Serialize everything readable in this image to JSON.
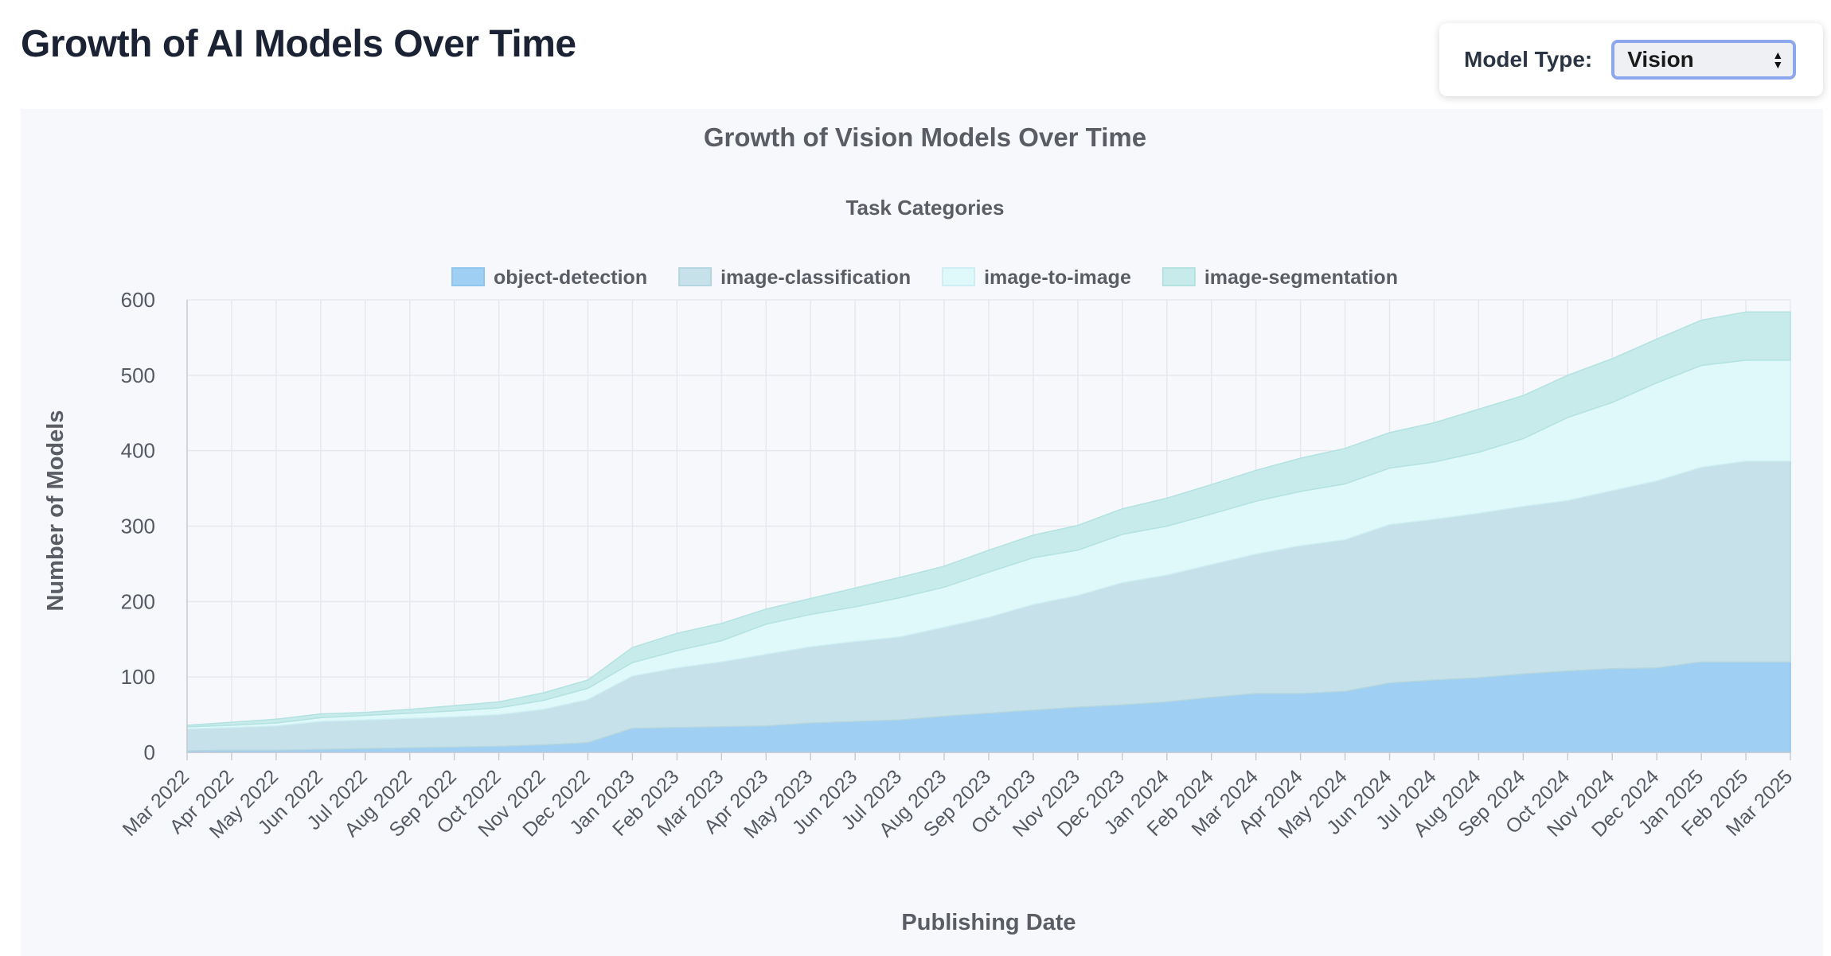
{
  "page": {
    "title": "Growth of AI Models Over Time"
  },
  "controls": {
    "label": "Model Type:",
    "selected": "Vision",
    "arrows_icon": "select-arrows-icon"
  },
  "chart_data": {
    "type": "area",
    "stacked": true,
    "title": "Growth of Vision Models Over Time",
    "legend_title": "Task Categories",
    "legend_placement": "top-center",
    "xlabel": "Publishing Date",
    "ylabel": "Number of Models",
    "ylim": [
      0,
      600
    ],
    "yticks": [
      0,
      100,
      200,
      300,
      400,
      500,
      600
    ],
    "grid": true,
    "categories": [
      "Mar 2022",
      "Apr 2022",
      "May 2022",
      "Jun 2022",
      "Jul 2022",
      "Aug 2022",
      "Sep 2022",
      "Oct 2022",
      "Nov 2022",
      "Dec 2022",
      "Jan 2023",
      "Feb 2023",
      "Mar 2023",
      "Apr 2023",
      "May 2023",
      "Jun 2023",
      "Jul 2023",
      "Aug 2023",
      "Sep 2023",
      "Oct 2023",
      "Nov 2023",
      "Dec 2023",
      "Jan 2024",
      "Feb 2024",
      "Mar 2024",
      "Apr 2024",
      "May 2024",
      "Jun 2024",
      "Jul 2024",
      "Aug 2024",
      "Sep 2024",
      "Oct 2024",
      "Nov 2024",
      "Dec 2024",
      "Jan 2025",
      "Feb 2025",
      "Mar 2025"
    ],
    "series": [
      {
        "name": "object-detection",
        "color": "#9fcff2",
        "stroke": "#8ec6ee",
        "values": [
          2,
          3,
          3,
          4,
          5,
          6,
          7,
          8,
          10,
          13,
          32,
          33,
          34,
          35,
          39,
          41,
          43,
          48,
          52,
          56,
          60,
          63,
          67,
          73,
          78,
          78,
          81,
          92,
          96,
          99,
          104,
          108,
          111,
          112,
          120,
          120,
          120
        ]
      },
      {
        "name": "image-classification",
        "color": "#c6e1ea",
        "stroke": "#b4d6e0",
        "values": [
          29,
          30,
          32,
          37,
          38,
          39,
          40,
          42,
          47,
          57,
          69,
          79,
          86,
          95,
          101,
          106,
          110,
          118,
          127,
          140,
          148,
          162,
          168,
          176,
          185,
          196,
          201,
          210,
          213,
          218,
          222,
          226,
          236,
          248,
          258,
          266,
          266
        ]
      },
      {
        "name": "image-to-image",
        "color": "#dff8fa",
        "stroke": "#cdeef2",
        "values": [
          3,
          3,
          4,
          5,
          6,
          7,
          8,
          9,
          12,
          15,
          18,
          23,
          28,
          40,
          43,
          46,
          52,
          53,
          60,
          62,
          60,
          64,
          65,
          67,
          70,
          72,
          74,
          75,
          76,
          81,
          90,
          110,
          117,
          130,
          135,
          134,
          134
        ]
      },
      {
        "name": "image-segmentation",
        "color": "#c7ebea",
        "stroke": "#b3e2e0",
        "values": [
          2,
          4,
          5,
          5,
          4,
          5,
          7,
          8,
          10,
          11,
          20,
          23,
          23,
          20,
          21,
          25,
          27,
          28,
          29,
          30,
          33,
          34,
          37,
          39,
          41,
          44,
          47,
          47,
          52,
          57,
          57,
          56,
          58,
          58,
          60,
          64,
          64
        ]
      }
    ]
  }
}
